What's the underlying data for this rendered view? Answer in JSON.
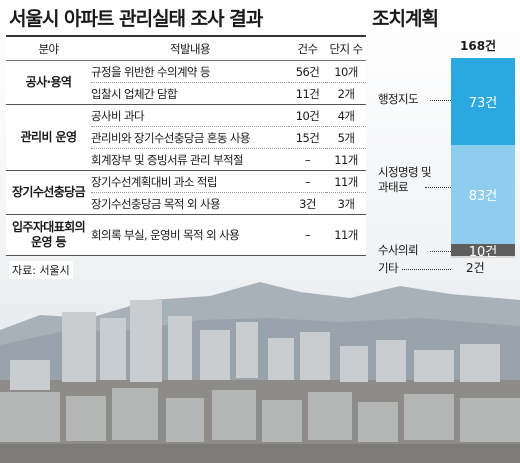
{
  "title": "서울시 아파트 관리실태 조사 결과",
  "table": {
    "headers": [
      "분야",
      "적발내용",
      "건수",
      "단지 수"
    ],
    "groups": [
      {
        "category": [
          "공사·용역"
        ],
        "rows": [
          {
            "item": "규정을 위반한 수의계약 등",
            "count": "56건",
            "complexes": "10개"
          },
          {
            "item": "입찰시 업체간 담합",
            "count": "11건",
            "complexes": "2개"
          }
        ]
      },
      {
        "category": [
          "관리비 운영"
        ],
        "rows": [
          {
            "item": "공사비 과다",
            "count": "10건",
            "complexes": "4개"
          },
          {
            "item": "관리비와 장기수선충당금 혼동 사용",
            "count": "15건",
            "complexes": "5개"
          },
          {
            "item": "회계장부 및 증빙서류 관리 부적절",
            "count": "–",
            "complexes": "11개"
          }
        ]
      },
      {
        "category": [
          "장기수선충당금"
        ],
        "rows": [
          {
            "item": "장기수선계획대비 과소 적립",
            "count": "–",
            "complexes": "11개"
          },
          {
            "item": "장기수선충당금 목적 외 사용",
            "count": "3건",
            "complexes": "3개"
          }
        ]
      },
      {
        "category": [
          "입주자대표회의",
          "운영 등"
        ],
        "rows": [
          {
            "item": "회의록 부실, 운영비 목적 외 사용",
            "count": "–",
            "complexes": "11개"
          }
        ]
      }
    ]
  },
  "source": "자료: 서울시",
  "side_title": "조치계획",
  "chart_data": {
    "type": "bar",
    "stacked": true,
    "total_label": "168건",
    "categories": [
      "행정지도",
      "시정명령 및 과태료",
      "수사의뢰",
      "기타"
    ],
    "display_labels": [
      [
        "행정지도"
      ],
      [
        "시정명령 및",
        "과태료"
      ],
      [
        "수사의뢰"
      ],
      [
        "기타"
      ]
    ],
    "values": [
      73,
      83,
      10,
      2
    ],
    "value_labels": [
      "73건",
      "83건",
      "10건",
      "2건"
    ],
    "colors": [
      "#29a9df",
      "#8fcdef",
      "#5e5e5e",
      "#d9d9d9"
    ]
  }
}
